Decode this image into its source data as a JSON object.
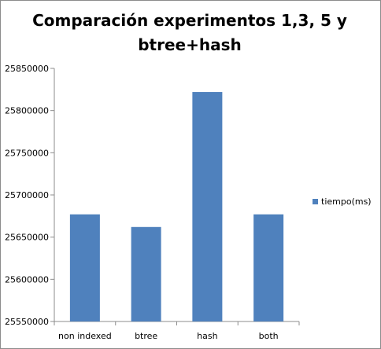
{
  "chart_data": {
    "type": "bar",
    "title_lines": [
      "Comparación experimentos 1,3, 5 y",
      "btree+hash"
    ],
    "categories": [
      "non indexed",
      "btree",
      "hash",
      "both"
    ],
    "series": [
      {
        "name": "tiempo(ms)",
        "values": [
          25677000,
          25662000,
          25822000,
          25677000
        ],
        "color": "#4f81bd"
      }
    ],
    "ylim": [
      25550000,
      25850000
    ],
    "yticks": [
      "25550000",
      "25600000",
      "25650000",
      "25700000",
      "25750000",
      "25800000",
      "25850000"
    ],
    "grid": false,
    "legend_position": "right",
    "xlabel": "",
    "ylabel": ""
  }
}
